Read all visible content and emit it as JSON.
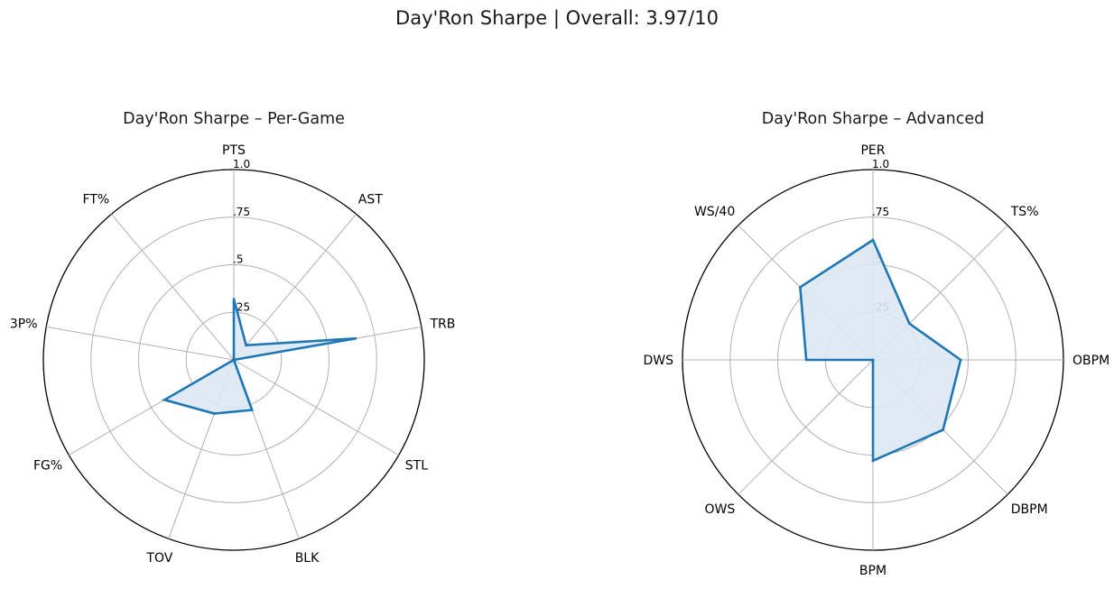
{
  "suptitle": "Day'Ron Sharpe | Overall: 3.97/10",
  "colors": {
    "series": "#1f77b4",
    "fill": "#dbe8f3",
    "grid": "#b0b0b0",
    "frame": "#000000"
  },
  "chart_data": [
    {
      "type": "radar",
      "title": "Day'Ron Sharpe – Per-Game",
      "rlim": [
        0,
        1.0
      ],
      "r_ticks": [
        0.25,
        0.5,
        0.75,
        1.0
      ],
      "r_tick_labels": [
        ".25",
        ".5",
        ".75",
        "1.0"
      ],
      "categories": [
        "PTS",
        "AST",
        "TRB",
        "STL",
        "BLK",
        "TOV",
        "FG%",
        "3P%",
        "FT%"
      ],
      "values": [
        0.32,
        0.1,
        0.65,
        0.0,
        0.28,
        0.3,
        0.42,
        0.0,
        0.0
      ],
      "grid": true
    },
    {
      "type": "radar",
      "title": "Day'Ron Sharpe – Advanced",
      "rlim": [
        0,
        1.0
      ],
      "r_ticks": [
        0.25,
        0.5,
        0.75,
        1.0
      ],
      "r_tick_labels": [
        ".25",
        ".5",
        ".75",
        "1.0"
      ],
      "categories": [
        "PER",
        "TS%",
        "OBPM",
        "DBPM",
        "BPM",
        "OWS",
        "DWS",
        "WS/40"
      ],
      "values": [
        0.63,
        0.27,
        0.46,
        0.52,
        0.53,
        0.0,
        0.35,
        0.54
      ],
      "grid": true
    }
  ]
}
